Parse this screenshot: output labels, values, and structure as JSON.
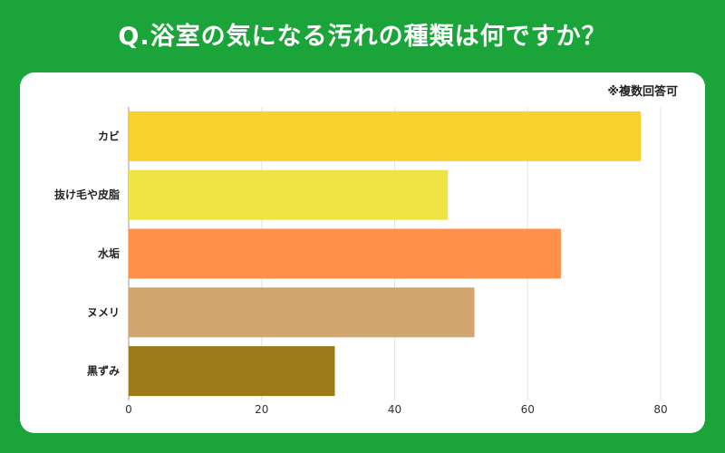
{
  "title": "Q.浴室の気になる汚れの種類は何ですか？",
  "note": "※複数回答可",
  "chart_data": {
    "type": "bar",
    "orientation": "horizontal",
    "categories": [
      "カビ",
      "抜け毛や皮脂",
      "水垢",
      "ヌメリ",
      "黒ずみ"
    ],
    "values": [
      77,
      48,
      65,
      52,
      31
    ],
    "colors": [
      "#f9d12c",
      "#f0e444",
      "#ff8f49",
      "#d3a56e",
      "#9b7b18"
    ],
    "xlim": [
      0,
      80
    ],
    "xticks": [
      0,
      20,
      40,
      60,
      80
    ],
    "grid": true
  }
}
